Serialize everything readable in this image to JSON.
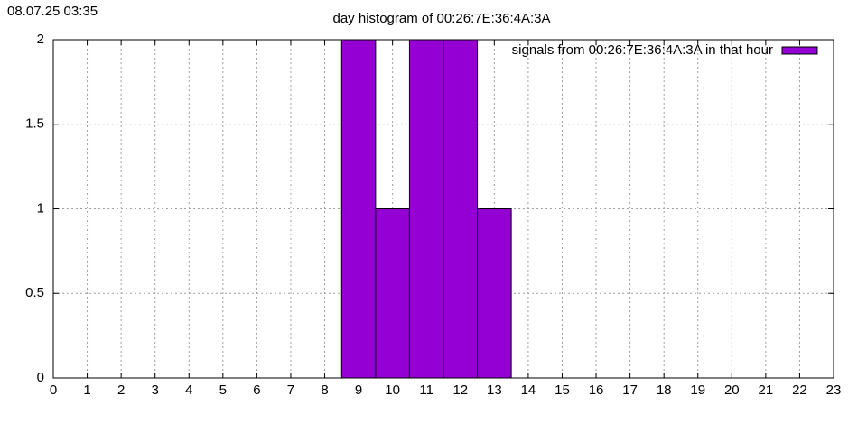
{
  "chart_data": {
    "type": "bar",
    "title": "day histogram of 00:26:7E:36:4A:3A",
    "timestamp": "08.07.25 03:35",
    "x": [
      9,
      10,
      11,
      12,
      13
    ],
    "series": [
      {
        "name": "signals from 00:26:7E:36:4A:3A in that hour",
        "color": "#9400d3",
        "values": [
          2,
          1,
          2,
          2,
          1
        ]
      }
    ],
    "xlim": [
      0,
      23
    ],
    "xticks": [
      0,
      1,
      2,
      3,
      4,
      5,
      6,
      7,
      8,
      9,
      10,
      11,
      12,
      13,
      14,
      15,
      16,
      17,
      18,
      19,
      20,
      21,
      22,
      23
    ],
    "ylim": [
      0,
      2
    ],
    "yticks": [
      0,
      0.5,
      1,
      1.5,
      2
    ],
    "grid": true,
    "legend": "top-right"
  }
}
